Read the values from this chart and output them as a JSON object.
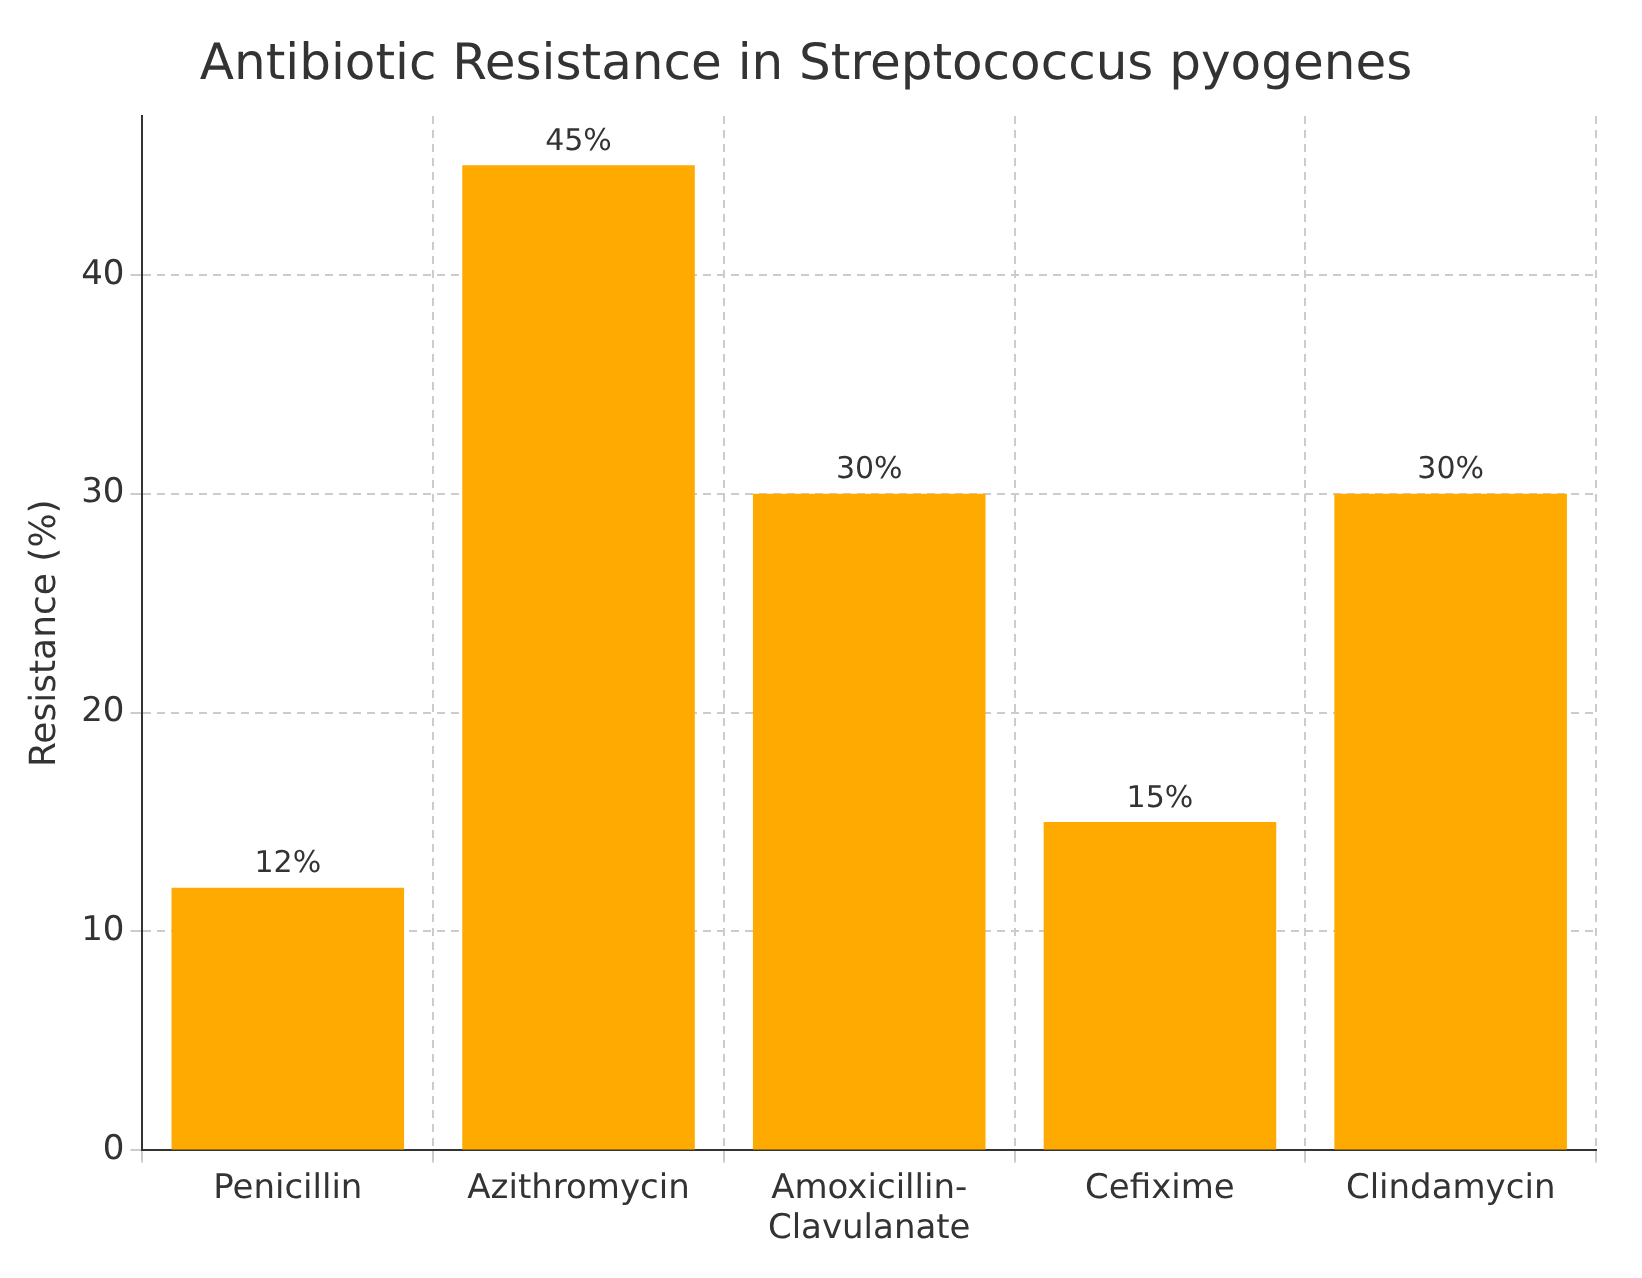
{
  "chart_data": {
    "type": "bar",
    "title": "Antibiotic Resistance in Streptococcus pyogenes",
    "ylabel": "Resistance (%)",
    "categories": [
      "Penicillin",
      "Azithromycin",
      "Amoxicillin-Clavulanate",
      "Cefixime",
      "Clindamycin"
    ],
    "values": [
      12,
      45,
      30,
      15,
      30
    ],
    "color": "#ffaa00",
    "value_labels": [
      "12%",
      "45%",
      "30%",
      "15%",
      "30%"
    ],
    "ylim": [
      0,
      47.25
    ],
    "yticks": [
      0,
      10,
      20,
      30,
      40
    ],
    "grid": true
  }
}
